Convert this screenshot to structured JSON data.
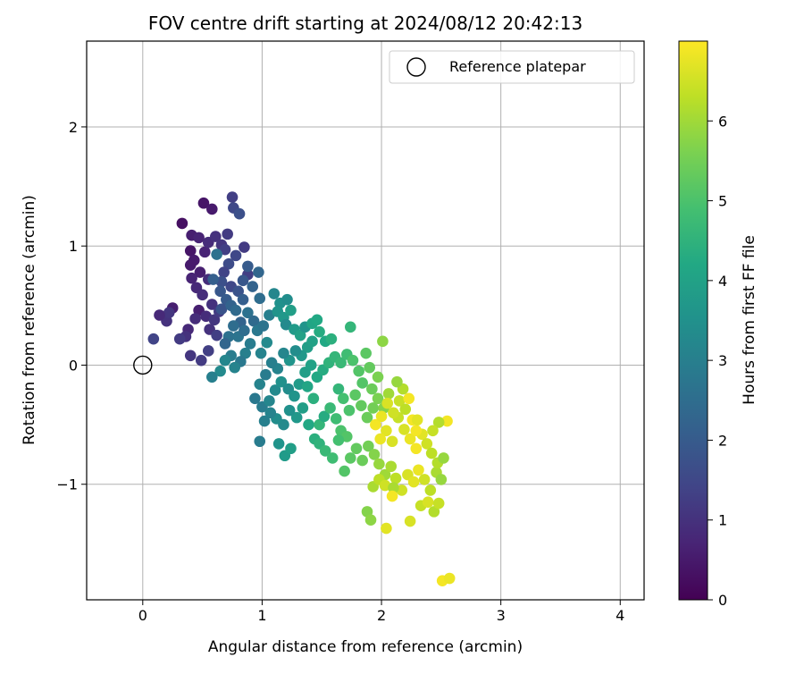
{
  "chart_data": {
    "type": "scatter",
    "title": "FOV centre drift starting at 2024/08/12 20:42:13",
    "xlabel": "Angular distance from reference (arcmin)",
    "ylabel": "Rotation from reference (arcmin)",
    "xlim": [
      -0.47,
      4.2
    ],
    "ylim": [
      -1.97,
      2.72
    ],
    "xticks": [
      0,
      1,
      2,
      3,
      4
    ],
    "xtick_labels": [
      "0",
      "1",
      "2",
      "3",
      "4"
    ],
    "yticks": [
      -1,
      0,
      1,
      2
    ],
    "ytick_labels": [
      "−1",
      "0",
      "1",
      "2"
    ],
    "grid": true,
    "legend": {
      "placement": "top-right",
      "label": "Reference platepar"
    },
    "reference_point": {
      "x": 0,
      "y": 0
    },
    "colorbar": {
      "label": "Hours from first FF file",
      "min": 0,
      "max": 7,
      "ticks": [
        0,
        1,
        2,
        3,
        4,
        5,
        6
      ],
      "tick_labels": [
        "0",
        "1",
        "2",
        "3",
        "4",
        "5",
        "6"
      ],
      "colormap": "viridis"
    },
    "points": [
      [
        0.33,
        1.19,
        0.3
      ],
      [
        0.51,
        1.36,
        0.4
      ],
      [
        0.58,
        1.31,
        0.5
      ],
      [
        0.41,
        1.09,
        0.6
      ],
      [
        0.47,
        1.07,
        0.7
      ],
      [
        0.4,
        0.96,
        0.4
      ],
      [
        0.43,
        0.88,
        0.5
      ],
      [
        0.52,
        0.95,
        0.7
      ],
      [
        0.48,
        0.78,
        0.6
      ],
      [
        0.55,
        0.72,
        0.9
      ],
      [
        0.4,
        0.84,
        0.5
      ],
      [
        0.45,
        0.65,
        0.8
      ],
      [
        0.5,
        0.59,
        0.9
      ],
      [
        0.41,
        0.73,
        0.7
      ],
      [
        0.47,
        0.46,
        0.6
      ],
      [
        0.38,
        0.3,
        0.8
      ],
      [
        0.44,
        0.39,
        0.9
      ],
      [
        0.36,
        0.24,
        1.0
      ],
      [
        0.4,
        0.08,
        1.1
      ],
      [
        0.49,
        0.04,
        1.2
      ],
      [
        0.55,
        0.12,
        1.3
      ],
      [
        0.25,
        0.48,
        0.6
      ],
      [
        0.2,
        0.37,
        1.0
      ],
      [
        0.22,
        0.44,
        1.1
      ],
      [
        0.14,
        0.42,
        0.8
      ],
      [
        0.31,
        0.22,
        1.2
      ],
      [
        0.09,
        0.22,
        1.4
      ],
      [
        0.53,
        0.41,
        0.9
      ],
      [
        0.6,
        0.38,
        1.1
      ],
      [
        0.56,
        0.3,
        1.0
      ],
      [
        0.62,
        0.25,
        1.3
      ],
      [
        0.58,
        0.51,
        1.0
      ],
      [
        0.64,
        0.45,
        1.2
      ],
      [
        0.55,
        1.03,
        0.9
      ],
      [
        0.61,
        1.08,
        1.0
      ],
      [
        0.66,
        1.01,
        1.1
      ],
      [
        0.71,
        1.1,
        1.2
      ],
      [
        0.69,
        0.97,
        1.3
      ],
      [
        0.75,
        1.41,
        1.3
      ],
      [
        0.76,
        1.32,
        1.5
      ],
      [
        0.81,
        1.27,
        1.7
      ],
      [
        0.85,
        0.99,
        1.2
      ],
      [
        0.88,
        0.76,
        1.3
      ],
      [
        0.78,
        0.92,
        1.5
      ],
      [
        0.72,
        0.85,
        1.6
      ],
      [
        0.68,
        0.78,
        1.4
      ],
      [
        0.66,
        0.7,
        1.7
      ],
      [
        0.74,
        0.66,
        1.5
      ],
      [
        0.8,
        0.62,
        1.8
      ],
      [
        0.84,
        0.71,
        1.9
      ],
      [
        0.88,
        0.83,
        2.0
      ],
      [
        0.92,
        0.66,
        2.2
      ],
      [
        0.97,
        0.78,
        2.3
      ],
      [
        0.62,
        0.93,
        2.6
      ],
      [
        0.65,
        0.62,
        1.9
      ],
      [
        0.59,
        0.72,
        2.1
      ],
      [
        0.7,
        0.55,
        2.0
      ],
      [
        0.66,
        0.47,
        1.8
      ],
      [
        0.74,
        0.5,
        2.2
      ],
      [
        0.78,
        0.46,
        2.4
      ],
      [
        0.84,
        0.55,
        2.1
      ],
      [
        0.82,
        0.36,
        2.2
      ],
      [
        0.76,
        0.33,
        2.5
      ],
      [
        0.72,
        0.24,
        2.6
      ],
      [
        0.69,
        0.18,
        2.3
      ],
      [
        0.8,
        0.24,
        2.7
      ],
      [
        0.85,
        0.29,
        2.5
      ],
      [
        0.88,
        0.44,
        2.6
      ],
      [
        0.93,
        0.37,
        2.4
      ],
      [
        0.96,
        0.29,
        2.8
      ],
      [
        0.9,
        0.18,
        2.9
      ],
      [
        0.86,
        0.1,
        3.0
      ],
      [
        0.82,
        0.03,
        2.8
      ],
      [
        0.77,
        -0.02,
        3.1
      ],
      [
        0.74,
        0.08,
        2.9
      ],
      [
        0.69,
        0.04,
        3.2
      ],
      [
        0.65,
        -0.05,
        3.3
      ],
      [
        0.58,
        -0.1,
        3.0
      ],
      [
        0.99,
        0.1,
        3.1
      ],
      [
        1.04,
        0.19,
        3.3
      ],
      [
        1.01,
        0.33,
        2.7
      ],
      [
        1.06,
        0.42,
        3.0
      ],
      [
        0.98,
        0.56,
        2.5
      ],
      [
        1.1,
        0.6,
        3.2
      ],
      [
        1.15,
        0.52,
        3.5
      ],
      [
        1.21,
        0.55,
        3.4
      ],
      [
        1.13,
        0.45,
        3.6
      ],
      [
        1.18,
        0.4,
        3.7
      ],
      [
        1.24,
        0.46,
        3.9
      ],
      [
        1.2,
        0.34,
        3.3
      ],
      [
        1.27,
        0.3,
        3.8
      ],
      [
        1.32,
        0.25,
        4.0
      ],
      [
        1.36,
        0.32,
        3.6
      ],
      [
        1.42,
        0.35,
        4.1
      ],
      [
        1.48,
        0.28,
        4.3
      ],
      [
        1.53,
        0.2,
        4.2
      ],
      [
        1.38,
        0.15,
        3.9
      ],
      [
        1.33,
        0.08,
        3.7
      ],
      [
        1.28,
        0.12,
        3.4
      ],
      [
        1.23,
        0.04,
        3.6
      ],
      [
        1.18,
        0.1,
        3.2
      ],
      [
        1.13,
        -0.03,
        3.1
      ],
      [
        1.08,
        0.02,
        3.0
      ],
      [
        1.03,
        -0.08,
        2.9
      ],
      [
        0.98,
        -0.16,
        3.1
      ],
      [
        0.94,
        -0.28,
        2.8
      ],
      [
        1.0,
        -0.35,
        2.9
      ],
      [
        1.06,
        -0.3,
        3.2
      ],
      [
        1.11,
        -0.21,
        3.3
      ],
      [
        1.16,
        -0.14,
        3.5
      ],
      [
        1.22,
        -0.2,
        3.4
      ],
      [
        1.27,
        -0.26,
        3.6
      ],
      [
        1.31,
        -0.16,
        3.8
      ],
      [
        1.36,
        -0.06,
        3.9
      ],
      [
        1.41,
        0.0,
        4.0
      ],
      [
        1.46,
        -0.1,
        4.2
      ],
      [
        1.51,
        -0.04,
        4.3
      ],
      [
        1.56,
        0.02,
        4.5
      ],
      [
        1.61,
        0.07,
        4.6
      ],
      [
        1.66,
        0.02,
        4.7
      ],
      [
        1.71,
        0.09,
        4.8
      ],
      [
        1.76,
        0.04,
        5.0
      ],
      [
        1.81,
        -0.05,
        5.1
      ],
      [
        1.87,
        0.1,
        5.2
      ],
      [
        1.74,
        0.32,
        4.6
      ],
      [
        1.58,
        0.22,
        4.4
      ],
      [
        1.42,
        0.2,
        4.0
      ],
      [
        1.46,
        0.38,
        4.2
      ],
      [
        1.38,
        -0.18,
        4.1
      ],
      [
        1.43,
        -0.28,
        4.4
      ],
      [
        1.34,
        -0.36,
        3.9
      ],
      [
        1.29,
        -0.44,
        3.7
      ],
      [
        1.23,
        -0.38,
        3.5
      ],
      [
        1.18,
        -0.5,
        3.3
      ],
      [
        1.12,
        -0.45,
        3.4
      ],
      [
        1.07,
        -0.4,
        3.1
      ],
      [
        1.02,
        -0.47,
        3.0
      ],
      [
        0.98,
        -0.64,
        2.9
      ],
      [
        1.14,
        -0.66,
        3.6
      ],
      [
        1.19,
        -0.76,
        3.8
      ],
      [
        1.24,
        -0.7,
        3.9
      ],
      [
        1.39,
        -0.5,
        4.2
      ],
      [
        1.44,
        -0.62,
        4.4
      ],
      [
        1.48,
        -0.5,
        4.6
      ],
      [
        1.52,
        -0.43,
        4.3
      ],
      [
        1.57,
        -0.36,
        4.7
      ],
      [
        1.62,
        -0.45,
        4.8
      ],
      [
        1.66,
        -0.55,
        5.0
      ],
      [
        1.71,
        -0.6,
        5.1
      ],
      [
        1.64,
        -0.2,
        4.6
      ],
      [
        1.68,
        -0.28,
        4.9
      ],
      [
        1.73,
        -0.38,
        5.0
      ],
      [
        1.78,
        -0.25,
        5.2
      ],
      [
        1.83,
        -0.34,
        5.3
      ],
      [
        1.88,
        -0.44,
        5.4
      ],
      [
        1.93,
        -0.36,
        5.5
      ],
      [
        1.97,
        -0.28,
        5.6
      ],
      [
        2.02,
        -0.36,
        5.7
      ],
      [
        2.06,
        -0.24,
        6.0
      ],
      [
        1.92,
        -0.2,
        5.4
      ],
      [
        1.97,
        -0.1,
        5.6
      ],
      [
        2.01,
        0.2,
        5.8
      ],
      [
        1.9,
        -0.02,
        5.3
      ],
      [
        1.84,
        -0.15,
        5.1
      ],
      [
        1.48,
        -0.66,
        4.5
      ],
      [
        1.53,
        -0.72,
        4.7
      ],
      [
        1.59,
        -0.78,
        4.8
      ],
      [
        1.64,
        -0.63,
        4.9
      ],
      [
        1.69,
        -0.89,
        5.1
      ],
      [
        1.74,
        -0.78,
        5.2
      ],
      [
        1.79,
        -0.7,
        5.3
      ],
      [
        1.84,
        -0.8,
        5.4
      ],
      [
        1.89,
        -0.68,
        5.5
      ],
      [
        1.94,
        -0.75,
        5.7
      ],
      [
        1.98,
        -0.83,
        5.9
      ],
      [
        2.03,
        -0.92,
        6.0
      ],
      [
        2.08,
        -0.85,
        6.1
      ],
      [
        2.12,
        -0.95,
        6.3
      ],
      [
        2.17,
        -1.05,
        6.5
      ],
      [
        2.22,
        -0.92,
        6.6
      ],
      [
        2.27,
        -0.98,
        6.7
      ],
      [
        2.31,
        -0.88,
        6.8
      ],
      [
        2.36,
        -0.96,
        6.5
      ],
      [
        2.41,
        -1.05,
        6.3
      ],
      [
        2.46,
        -0.9,
        6.1
      ],
      [
        2.5,
        -0.96,
        5.9
      ],
      [
        2.14,
        -0.44,
        6.4
      ],
      [
        2.19,
        -0.54,
        6.6
      ],
      [
        2.24,
        -0.62,
        6.8
      ],
      [
        2.29,
        -0.7,
        6.9
      ],
      [
        2.34,
        -0.58,
        6.7
      ],
      [
        2.38,
        -0.66,
        6.5
      ],
      [
        2.42,
        -0.74,
        6.3
      ],
      [
        2.47,
        -0.82,
        6.2
      ],
      [
        2.52,
        -0.78,
        5.9
      ],
      [
        2.55,
        -0.47,
        6.9
      ],
      [
        2.48,
        -0.48,
        6.2
      ],
      [
        2.43,
        -0.55,
        6.4
      ],
      [
        2.09,
        -0.64,
        6.6
      ],
      [
        2.04,
        -0.55,
        6.7
      ],
      [
        1.99,
        -0.62,
        6.8
      ],
      [
        1.95,
        -0.5,
        6.9
      ],
      [
        2.0,
        -0.43,
        6.8
      ],
      [
        2.05,
        -0.32,
        6.6
      ],
      [
        2.1,
        -0.4,
        6.5
      ],
      [
        2.15,
        -0.3,
        6.4
      ],
      [
        2.2,
        -0.37,
        6.3
      ],
      [
        2.23,
        -0.28,
        6.9
      ],
      [
        2.18,
        -0.2,
        6.2
      ],
      [
        2.13,
        -0.14,
        5.9
      ],
      [
        1.93,
        -1.02,
        6.1
      ],
      [
        1.98,
        -0.96,
        6.3
      ],
      [
        2.03,
        -1.01,
        6.5
      ],
      [
        2.1,
        -1.03,
        6.1
      ],
      [
        2.24,
        -1.31,
        6.6
      ],
      [
        2.09,
        -1.1,
        6.9
      ],
      [
        2.04,
        -1.37,
        6.7
      ],
      [
        1.88,
        -1.23,
        5.7
      ],
      [
        1.91,
        -1.3,
        5.8
      ],
      [
        2.33,
        -1.18,
        6.4
      ],
      [
        2.39,
        -1.15,
        6.6
      ],
      [
        2.44,
        -1.23,
        6.2
      ],
      [
        2.48,
        -1.16,
        6.4
      ],
      [
        2.51,
        -1.81,
        6.9
      ],
      [
        2.57,
        -1.79,
        6.8
      ],
      [
        2.29,
        -0.55,
        6.9
      ],
      [
        2.26,
        -0.46,
        6.9
      ],
      [
        2.3,
        -0.46,
        6.7
      ]
    ]
  }
}
